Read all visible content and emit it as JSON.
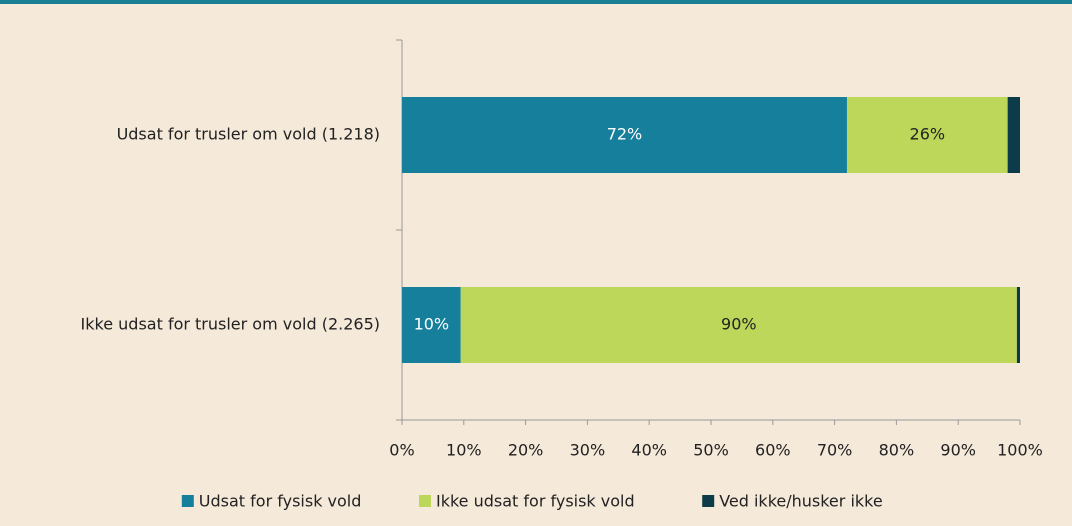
{
  "chart_data": {
    "type": "bar",
    "orientation": "horizontal",
    "stacked": true,
    "categories": [
      "Udsat for trusler om vold (1.218)",
      "Ikke udsat for trusler om vold (2.265)"
    ],
    "series": [
      {
        "name": "Udsat for fysisk vold",
        "color": "#167f9c",
        "values": [
          72,
          9.5
        ],
        "value_labels": [
          "72%",
          "10%"
        ]
      },
      {
        "name": "Ikke udsat for fysisk vold",
        "color": "#bdd75a",
        "values": [
          26,
          90
        ],
        "value_labels": [
          "26%",
          "90%"
        ]
      },
      {
        "name": "Ved ikke/husker ikke",
        "color": "#0c3c4a",
        "values": [
          2,
          0.5
        ]
      }
    ],
    "xlim": [
      0,
      100
    ],
    "xticks": [
      {
        "value": 0,
        "label": "0%"
      },
      {
        "value": 10,
        "label": "10%"
      },
      {
        "value": 20,
        "label": "20%"
      },
      {
        "value": 30,
        "label": "30%"
      },
      {
        "value": 40,
        "label": "40%"
      },
      {
        "value": 50,
        "label": "50%"
      },
      {
        "value": 60,
        "label": "60%"
      },
      {
        "value": 70,
        "label": "70%"
      },
      {
        "value": 80,
        "label": "80%"
      },
      {
        "value": 90,
        "label": "90%"
      },
      {
        "value": 100,
        "label": "100%"
      }
    ],
    "legend": "bottom"
  }
}
